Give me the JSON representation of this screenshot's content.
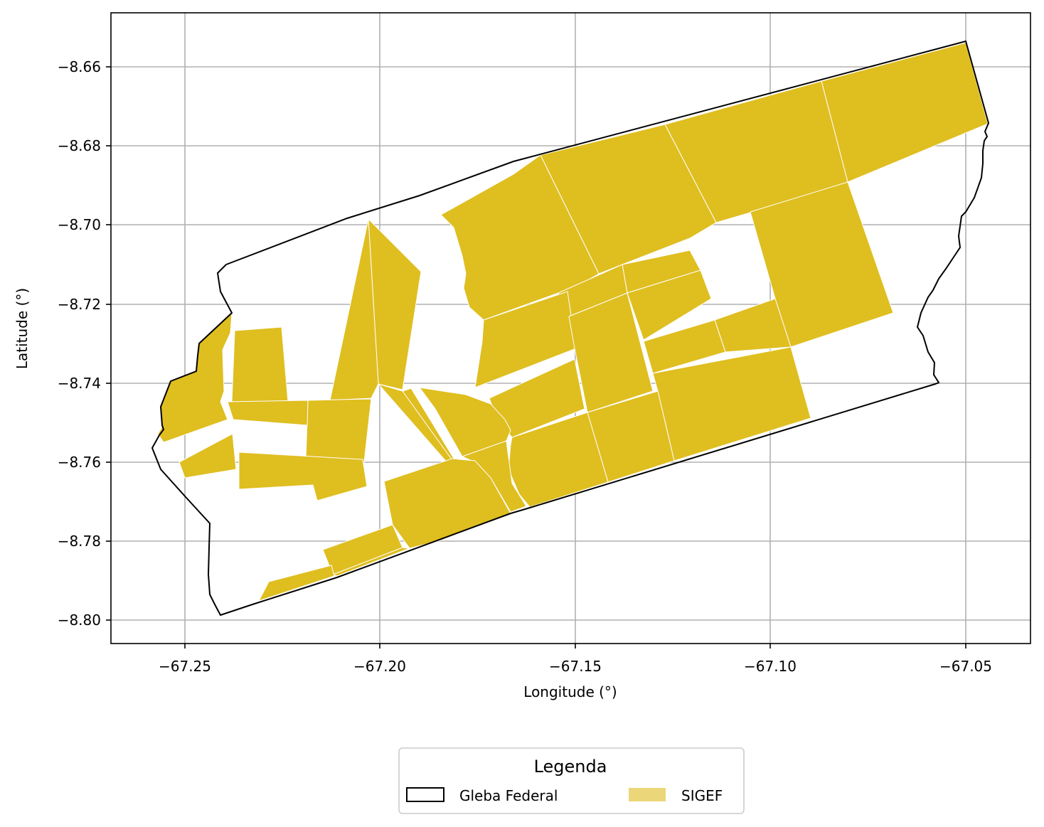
{
  "map": {
    "xlabel": "Longitude (°)",
    "ylabel": "Latitude (°)",
    "x_ticks": [
      "−67.25",
      "−67.20",
      "−67.15",
      "−67.10",
      "−67.05"
    ],
    "y_ticks": [
      "−8.66",
      "−8.68",
      "−8.70",
      "−8.72",
      "−8.74",
      "−8.76",
      "−8.78",
      "−8.80"
    ],
    "x_tick_values": [
      -67.25,
      -67.2,
      -67.15,
      -67.1,
      -67.05
    ],
    "y_tick_values": [
      -8.66,
      -8.68,
      -8.7,
      -8.72,
      -8.74,
      -8.76,
      -8.78,
      -8.8
    ],
    "xlim": [
      -67.269,
      -67.033
    ],
    "ylim": [
      -8.806,
      -8.647
    ],
    "grid": true,
    "colors": {
      "sigef_fill": "#dfbe20",
      "sigef_legend": "#ebd67a",
      "gleba_stroke": "#000000",
      "grid": "#b0b0b0"
    }
  },
  "legend": {
    "title": "Legenda",
    "placement": "bottom-center",
    "items": [
      {
        "label": "Gleba Federal",
        "style": "outline"
      },
      {
        "label": "SIGEF",
        "style": "fill"
      }
    ]
  }
}
